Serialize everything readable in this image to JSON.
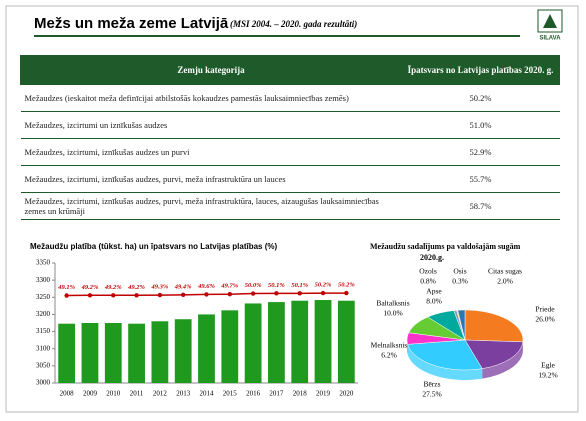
{
  "header": {
    "title": "Mežs un meža zeme Latvijā",
    "subtitle": "(MSI 2004. – 2020. gada rezultāti)",
    "logo": "SILAVA"
  },
  "table": {
    "columns": [
      "Zemju kategorija",
      "Īpatsvars no Latvijas platības 2020. g."
    ],
    "rows": [
      [
        "Mežaudzes (ieskaitot meža definīcijai atbilstošās kokaudzes pamestās lauksaimniecības zemēs)",
        "50.2%"
      ],
      [
        "Mežaudzes, izcirtumi un iznīkušas audzes",
        "51.0%"
      ],
      [
        "Mežaudzes, izcirtumi, iznīkušas audzes un purvi",
        "52.9%"
      ],
      [
        "Mežaudzes, izcirtumi, iznīkušas audzes, purvi, meža infrastruktūra un lauces",
        "55.7%"
      ],
      [
        "Mežaudzes, izcirtumi, iznīkušas audzes, purvi, meža infrastruktūra, lauces, aizaugušas lauksaimniecības zemes un krūmāji",
        "58.7%"
      ]
    ]
  },
  "chart_data": [
    {
      "type": "bar",
      "title": "Mežaudžu platība (tūkst. ha) un īpatsvars no Latvijas platības (%)",
      "categories": [
        "2008",
        "2009",
        "2010",
        "2011",
        "2012",
        "2013",
        "2014",
        "2015",
        "2016",
        "2017",
        "2018",
        "2019",
        "2020"
      ],
      "series": [
        {
          "type": "bar",
          "color": "#1f9a1f",
          "values": [
            3173,
            3175,
            3175,
            3173,
            3180,
            3186,
            3200,
            3212,
            3232,
            3236,
            3240,
            3242,
            3240
          ]
        },
        {
          "type": "line",
          "axis": "y2",
          "color": "#c00000",
          "values": [
            49.1,
            49.2,
            49.2,
            49.2,
            49.3,
            49.4,
            49.6,
            49.7,
            50.0,
            50.1,
            50.1,
            50.2,
            50.2
          ],
          "value_labels": [
            "49.1%",
            "49.2%",
            "49.2%",
            "49.2%",
            "49.3%",
            "49.4%",
            "49.6%",
            "49.7%",
            "50.0%",
            "50.1%",
            "50.1%",
            "50.2%",
            "50.2%"
          ]
        }
      ],
      "ylim": [
        3000,
        3350
      ],
      "yticks": [
        3000,
        3050,
        3100,
        3150,
        3200,
        3250,
        3300,
        3350
      ],
      "y2lim": [
        9,
        64
      ],
      "grid": false
    },
    {
      "type": "pie",
      "title": "Mežaudžu sadalījums pa valdošajām sugām 2020.g.",
      "categories": [
        "Priede",
        "Egle",
        "Bērzs",
        "Melnalksnis",
        "Baltalksnis",
        "Apse",
        "Ozols",
        "Osis",
        "Citas sugas"
      ],
      "values": [
        26.0,
        19.2,
        27.5,
        6.2,
        10.0,
        8.0,
        0.8,
        0.3,
        2.0
      ],
      "value_labels": [
        "26.0%",
        "19.2%",
        "27.5%",
        "6.2%",
        "10.0%",
        "8.0%",
        "0.8%",
        "0.3%",
        "2.0%"
      ],
      "colors": [
        "#f47b20",
        "#7b3fa0",
        "#33ccff",
        "#ff33cc",
        "#66cc33",
        "#00a99d",
        "#8899bb",
        "#ffd700",
        "#2e75b6"
      ]
    }
  ]
}
